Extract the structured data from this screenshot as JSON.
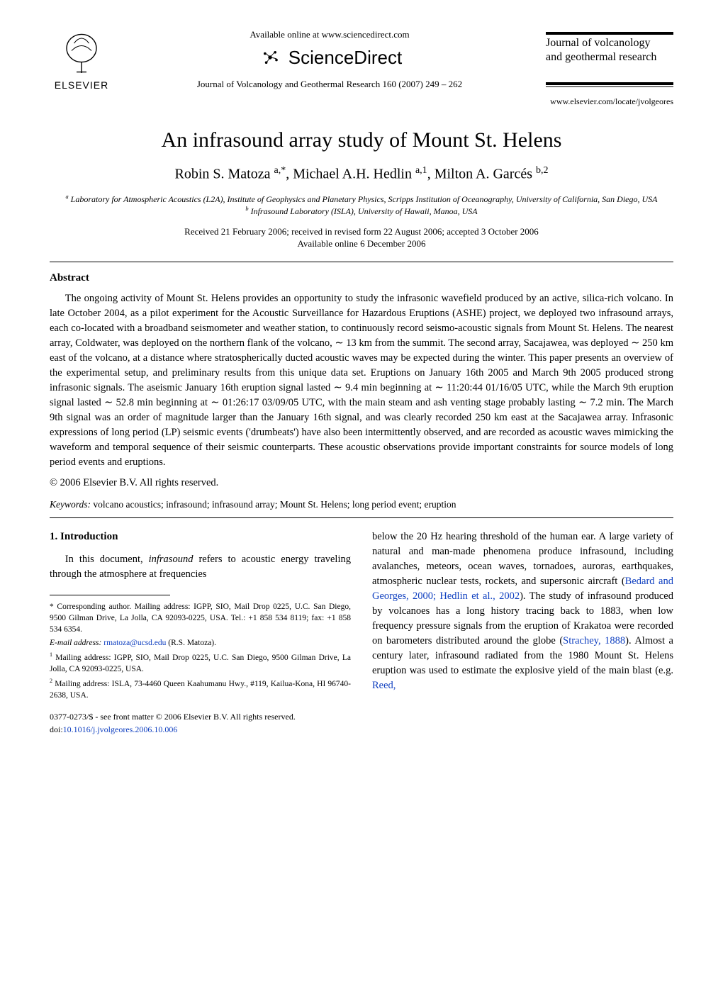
{
  "header": {
    "elsevier_label": "ELSEVIER",
    "available_online": "Available online at www.sciencedirect.com",
    "sciencedirect": "ScienceDirect",
    "journal_ref": "Journal of Volcanology and Geothermal Research 160 (2007) 249 – 262",
    "side_journal_title_line1": "Journal of volcanology",
    "side_journal_title_line2": "and geothermal research",
    "journal_url": "www.elsevier.com/locate/jvolgeores"
  },
  "title": "An infrasound array study of Mount St. Helens",
  "authors_html": "Robin S. Matoza <span class='sup'>a,*</span>, Michael A.H. Hedlin <span class='sup'>a,1</span>, Milton A. Garcés <span class='sup'>b,2</span>",
  "affiliations": {
    "a": "Laboratory for Atmospheric Acoustics (L2A), Institute of Geophysics and Planetary Physics, Scripps Institution of Oceanography, University of California, San Diego, USA",
    "b": "Infrasound Laboratory (ISLA), University of Hawaii, Manoa, USA"
  },
  "dates_line1": "Received 21 February 2006; received in revised form 22 August 2006; accepted 3 October 2006",
  "dates_line2": "Available online 6 December 2006",
  "abstract_heading": "Abstract",
  "abstract_body": "The ongoing activity of Mount St. Helens provides an opportunity to study the infrasonic wavefield produced by an active, silica-rich volcano. In late October 2004, as a pilot experiment for the Acoustic Surveillance for Hazardous Eruptions (ASHE) project, we deployed two infrasound arrays, each co-located with a broadband seismometer and weather station, to continuously record seismo-acoustic signals from Mount St. Helens. The nearest array, Coldwater, was deployed on the northern flank of the volcano, ∼ 13 km from the summit. The second array, Sacajawea, was deployed ∼ 250 km east of the volcano, at a distance where stratospherically ducted acoustic waves may be expected during the winter. This paper presents an overview of the experimental setup, and preliminary results from this unique data set. Eruptions on January 16th 2005 and March 9th 2005 produced strong infrasonic signals. The aseismic January 16th eruption signal lasted ∼ 9.4 min beginning at ∼ 11:20:44 01/16/05 UTC, while the March 9th eruption signal lasted ∼ 52.8 min beginning at ∼ 01:26:17 03/09/05 UTC, with the main steam and ash venting stage probably lasting ∼ 7.2 min. The March 9th signal was an order of magnitude larger than the January 16th signal, and was clearly recorded 250 km east at the Sacajawea array. Infrasonic expressions of long period (LP) seismic events ('drumbeats') have also been intermittently observed, and are recorded as acoustic waves mimicking the waveform and temporal sequence of their seismic counterparts. These acoustic observations provide important constraints for source models of long period events and eruptions.",
  "copyright": "© 2006 Elsevier B.V. All rights reserved.",
  "keywords_label": "Keywords:",
  "keywords_text": " volcano acoustics; infrasound; infrasound array; Mount St. Helens; long period event; eruption",
  "intro_heading": "1. Introduction",
  "intro_left": "In this document, infrasound refers to acoustic energy traveling through the atmosphere at frequencies",
  "intro_right": "below the 20 Hz hearing threshold of the human ear. A large variety of natural and man-made phenomena produce infrasound, including avalanches, meteors, ocean waves, tornadoes, auroras, earthquakes, atmospheric nuclear tests, rockets, and supersonic aircraft (Bedard and Georges, 2000; Hedlin et al., 2002). The study of infrasound produced by volcanoes has a long history tracing back to 1883, when low frequency pressure signals from the eruption of Krakatoa were recorded on barometers distributed around the globe (Strachey, 1888). Almost a century later, infrasound radiated from the 1980 Mount St. Helens eruption was used to estimate the explosive yield of the main blast (e.g. Reed,",
  "footnotes": {
    "corr": "* Corresponding author. Mailing address: IGPP, SIO, Mail Drop 0225, U.C. San Diego, 9500 Gilman Drive, La Jolla, CA 92093-0225, USA. Tel.: +1 858 534 8119; fax: +1 858 534 6354.",
    "email_label": "E-mail address:",
    "email": "rmatoza@ucsd.edu",
    "email_tail": " (R.S. Matoza).",
    "f1": "Mailing address: IGPP, SIO, Mail Drop 0225, U.C. San Diego, 9500 Gilman Drive, La Jolla, CA 92093-0225, USA.",
    "f2": "Mailing address: ISLA, 73-4460 Queen Kaahumanu Hwy., #119, Kailua-Kona, HI 96740-2638, USA."
  },
  "doi_line1": "0377-0273/$ - see front matter © 2006 Elsevier B.V. All rights reserved.",
  "doi_line2_label": "doi:",
  "doi_line2": "10.1016/j.jvolgeores.2006.10.006",
  "colors": {
    "text": "#000000",
    "background": "#ffffff",
    "link": "#1040c0"
  },
  "typography": {
    "body_font": "Times New Roman",
    "title_fontsize_pt": 22,
    "authors_fontsize_pt": 15,
    "body_fontsize_pt": 11,
    "footnote_fontsize_pt": 9
  }
}
